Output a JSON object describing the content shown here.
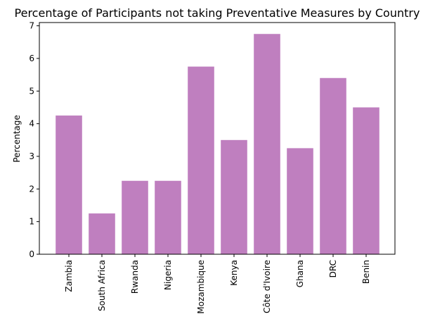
{
  "chart_data": {
    "type": "bar",
    "title": "Percentage of Participants not taking Preventative Measures by Country",
    "xlabel": "",
    "ylabel": "Percentage",
    "categories": [
      "Zambia",
      "South Africa",
      "Rwanda",
      "Nigeria",
      "Mozambique",
      "Kenya",
      "Côte d'Ivoire",
      "Ghana",
      "DRC",
      "Benin"
    ],
    "values": [
      4.25,
      1.25,
      2.25,
      2.25,
      5.75,
      3.5,
      6.75,
      3.25,
      5.4,
      4.5
    ],
    "ylim": [
      0,
      7.1
    ],
    "yticks": [
      "0",
      "1",
      "2",
      "3",
      "4",
      "5",
      "6",
      "7"
    ],
    "bar_color": "#bf7fbf",
    "grid": false,
    "legend": "none"
  }
}
